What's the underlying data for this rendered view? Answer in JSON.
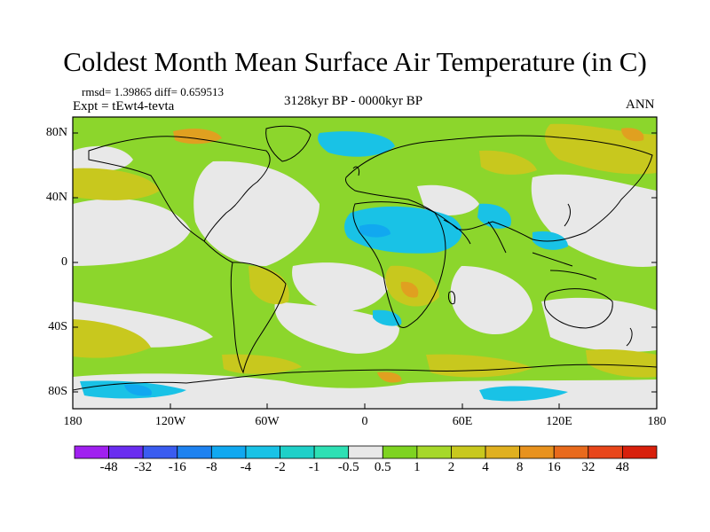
{
  "title": "Coldest Month Mean Surface Air Temperature (in C)",
  "stats": "rmsd= 1.39865 diff= 0.659513",
  "expt": "Expt = tEwt4-tevta",
  "period": "3128kyr BP - 0000kyr BP",
  "season": "ANN",
  "y_axis_labels": [
    "80N",
    "40N",
    "0",
    "40S",
    "80S"
  ],
  "x_axis_labels": [
    "180",
    "120W",
    "60W",
    "0",
    "60E",
    "120E",
    "180"
  ],
  "colorbar": {
    "labels": [
      "-48",
      "-32",
      "-16",
      "-8",
      "-4",
      "-2",
      "-1",
      "-0.5",
      "0.5",
      "1",
      "2",
      "4",
      "8",
      "16",
      "32",
      "48"
    ],
    "colors": [
      "#a020f0",
      "#6a2df0",
      "#3a5cf0",
      "#1e82f0",
      "#11a8f0",
      "#19c2e6",
      "#1fd0c8",
      "#2ee0b4",
      "#e8e8e8",
      "#7ed321",
      "#a6d82a",
      "#c8c81e",
      "#e0b020",
      "#e8921e",
      "#e86a1c",
      "#e8461a",
      "#d8200c"
    ]
  },
  "legend_colors": {
    "land_neutral": "#e8e8e8",
    "slight_warm": "#8cd62c",
    "warm": "#c8c81e",
    "warmer": "#e0a020",
    "cool": "#19c2e6",
    "cooler": "#11a8f0",
    "coastline": "#000000"
  }
}
